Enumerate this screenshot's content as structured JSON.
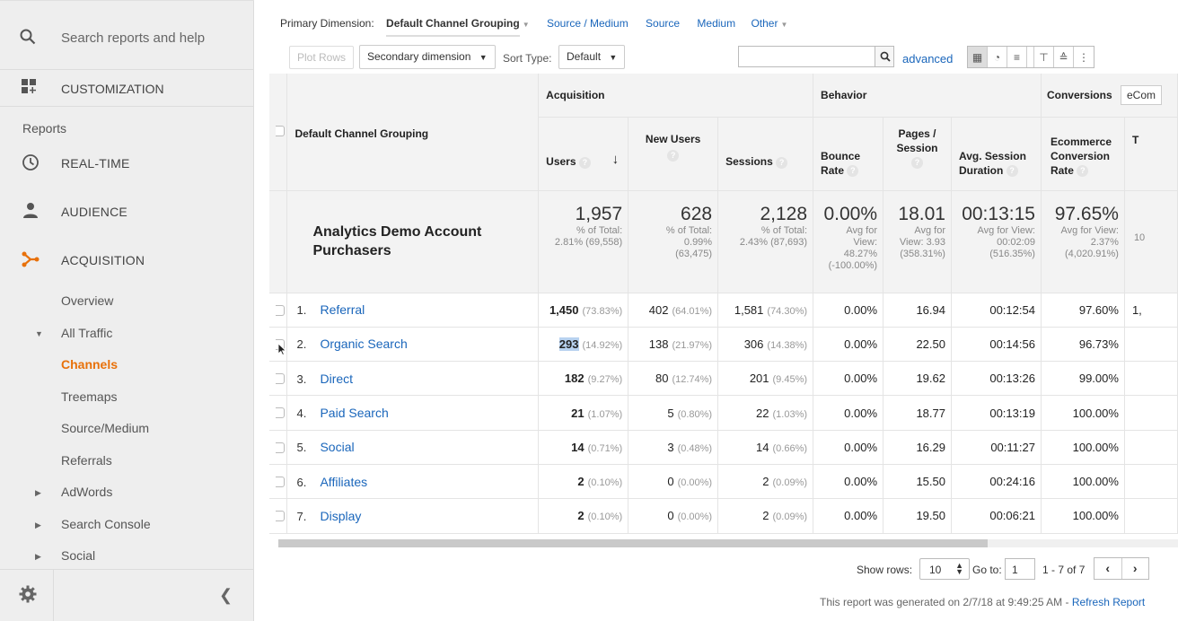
{
  "sidebar": {
    "search_label": "Search reports and help",
    "customization_label": "CUSTOMIZATION",
    "reports_label": "Reports",
    "realtime_label": "REAL-TIME",
    "audience_label": "AUDIENCE",
    "acquisition_label": "ACQUISITION",
    "sub": {
      "overview": "Overview",
      "all_traffic": "All Traffic",
      "channels": "Channels",
      "treemaps": "Treemaps",
      "source_medium": "Source/Medium",
      "referrals": "Referrals",
      "adwords": "AdWords",
      "search_console": "Search Console",
      "social": "Social"
    },
    "accent_color": "#e8710a"
  },
  "toolbar": {
    "primary_dimension_label": "Primary Dimension:",
    "primary_dimension_value": "Default Channel Grouping",
    "links": [
      "Source / Medium",
      "Source",
      "Medium",
      "Other"
    ],
    "plot_rows": "Plot Rows",
    "secondary_dimension": "Secondary dimension",
    "sort_type_label": "Sort Type:",
    "sort_type_value": "Default",
    "advanced": "advanced"
  },
  "table": {
    "groups": {
      "acquisition": "Acquisition",
      "behavior": "Behavior",
      "conversions": "Conversions",
      "conversions_select": "eCom"
    },
    "headers": {
      "dimension": "Default Channel Grouping",
      "users": "Users",
      "new_users": "New Users",
      "sessions": "Sessions",
      "bounce_rate_1": "Bounce",
      "bounce_rate_2": "Rate",
      "pages_session_1": "Pages /",
      "pages_session_2": "Session",
      "avg_duration_1": "Avg. Session",
      "avg_duration_2": "Duration",
      "ecom_1": "Ecommerce",
      "ecom_2": "Conversion",
      "ecom_3": "Rate",
      "next": "T"
    },
    "summary": {
      "label_1": "Analytics Demo Account",
      "label_2": "Purchasers",
      "users": "1,957",
      "users_sub_1": "% of Total:",
      "users_sub_2": "2.81% (69,558)",
      "new_users": "628",
      "new_users_sub_1": "% of Total:",
      "new_users_sub_2": "0.99%",
      "new_users_sub_3": "(63,475)",
      "sessions": "2,128",
      "sessions_sub_1": "% of Total:",
      "sessions_sub_2": "2.43% (87,693)",
      "bounce": "0.00%",
      "bounce_sub_1": "Avg for",
      "bounce_sub_2": "View:",
      "bounce_sub_3": "48.27%",
      "bounce_sub_4": "(-100.00%)",
      "pages": "18.01",
      "pages_sub_1": "Avg for",
      "pages_sub_2": "View: 3.93",
      "pages_sub_3": "(358.31%)",
      "duration": "00:13:15",
      "duration_sub_1": "Avg for View:",
      "duration_sub_2": "00:02:09",
      "duration_sub_3": "(516.35%)",
      "ecom": "97.65%",
      "ecom_sub_1": "Avg for View:",
      "ecom_sub_2": "2.37%",
      "ecom_sub_3": "(4,020.91%)",
      "next": "10"
    },
    "rows": [
      {
        "num": "1.",
        "name": "Referral",
        "users": "1,450",
        "users_pct": "(73.83%)",
        "new_users": "402",
        "new_users_pct": "(64.01%)",
        "sessions": "1,581",
        "sessions_pct": "(74.30%)",
        "bounce": "0.00%",
        "pages": "16.94",
        "duration": "00:12:54",
        "ecom": "97.60%",
        "next": "1,"
      },
      {
        "num": "2.",
        "name": "Organic Search",
        "users": "293",
        "users_pct": "(14.92%)",
        "new_users": "138",
        "new_users_pct": "(21.97%)",
        "sessions": "306",
        "sessions_pct": "(14.38%)",
        "bounce": "0.00%",
        "pages": "22.50",
        "duration": "00:14:56",
        "ecom": "96.73%",
        "next": ""
      },
      {
        "num": "3.",
        "name": "Direct",
        "users": "182",
        "users_pct": "(9.27%)",
        "new_users": "80",
        "new_users_pct": "(12.74%)",
        "sessions": "201",
        "sessions_pct": "(9.45%)",
        "bounce": "0.00%",
        "pages": "19.62",
        "duration": "00:13:26",
        "ecom": "99.00%",
        "next": ""
      },
      {
        "num": "4.",
        "name": "Paid Search",
        "users": "21",
        "users_pct": "(1.07%)",
        "new_users": "5",
        "new_users_pct": "(0.80%)",
        "sessions": "22",
        "sessions_pct": "(1.03%)",
        "bounce": "0.00%",
        "pages": "18.77",
        "duration": "00:13:19",
        "ecom": "100.00%",
        "next": ""
      },
      {
        "num": "5.",
        "name": "Social",
        "users": "14",
        "users_pct": "(0.71%)",
        "new_users": "3",
        "new_users_pct": "(0.48%)",
        "sessions": "14",
        "sessions_pct": "(0.66%)",
        "bounce": "0.00%",
        "pages": "16.29",
        "duration": "00:11:27",
        "ecom": "100.00%",
        "next": ""
      },
      {
        "num": "6.",
        "name": "Affiliates",
        "users": "2",
        "users_pct": "(0.10%)",
        "new_users": "0",
        "new_users_pct": "(0.00%)",
        "sessions": "2",
        "sessions_pct": "(0.09%)",
        "bounce": "0.00%",
        "pages": "15.50",
        "duration": "00:24:16",
        "ecom": "100.00%",
        "next": ""
      },
      {
        "num": "7.",
        "name": "Display",
        "users": "2",
        "users_pct": "(0.10%)",
        "new_users": "0",
        "new_users_pct": "(0.00%)",
        "sessions": "2",
        "sessions_pct": "(0.09%)",
        "bounce": "0.00%",
        "pages": "19.50",
        "duration": "00:06:21",
        "ecom": "100.00%",
        "next": ""
      }
    ]
  },
  "footer": {
    "show_rows_label": "Show rows:",
    "show_rows_value": "10",
    "goto_label": "Go to:",
    "goto_value": "1",
    "page_count": "1 - 7 of 7",
    "generated_text": "This report was generated on 2/7/18 at 9:49:25 AM - ",
    "refresh_link": "Refresh Report"
  }
}
